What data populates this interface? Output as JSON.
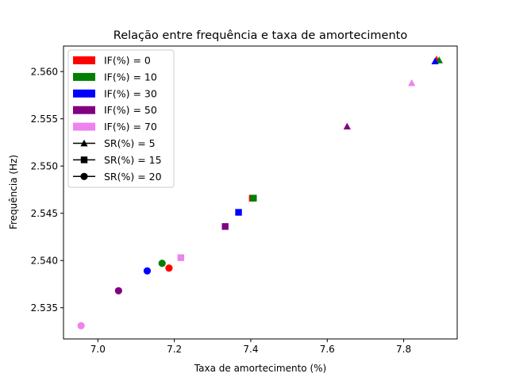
{
  "chart_data": {
    "type": "scatter",
    "title": "Relação entre frequência e taxa de amortecimento",
    "xlabel": "Taxa de amortecimento (%)",
    "ylabel": "Frequência (Hz)",
    "xlim": [
      6.91,
      7.94
    ],
    "ylim": [
      2.5317,
      2.5627
    ],
    "xticks": [
      7.0,
      7.2,
      7.4,
      7.6,
      7.8
    ],
    "xtick_labels": [
      "7.0",
      "7.2",
      "7.4",
      "7.6",
      "7.8"
    ],
    "yticks": [
      2.535,
      2.54,
      2.545,
      2.55,
      2.555,
      2.56
    ],
    "ytick_labels": [
      "2.535",
      "2.540",
      "2.545",
      "2.550",
      "2.555",
      "2.560"
    ],
    "grid": false,
    "legend_position": "upper-left",
    "color_groups": [
      {
        "label": "IF(%) = 0",
        "color": "#ff0000"
      },
      {
        "label": "IF(%) = 10",
        "color": "#008000"
      },
      {
        "label": "IF(%) = 30",
        "color": "#0000ff"
      },
      {
        "label": "IF(%) = 50",
        "color": "#800080"
      },
      {
        "label": "IF(%) = 70",
        "color": "#ee82ee"
      }
    ],
    "marker_groups": [
      {
        "label": "SR(%) = 5",
        "marker": "triangle"
      },
      {
        "label": "SR(%) = 15",
        "marker": "square"
      },
      {
        "label": "SR(%) = 20",
        "marker": "circle"
      }
    ],
    "points": [
      {
        "if_pct": 0,
        "sr_pct": 5,
        "x": 7.886,
        "y": 2.5613,
        "color": "#ff0000",
        "marker": "triangle"
      },
      {
        "if_pct": 10,
        "sr_pct": 5,
        "x": 7.893,
        "y": 2.5612,
        "color": "#008000",
        "marker": "triangle"
      },
      {
        "if_pct": 30,
        "sr_pct": 5,
        "x": 7.882,
        "y": 2.5611,
        "color": "#0000ff",
        "marker": "triangle"
      },
      {
        "if_pct": 50,
        "sr_pct": 5,
        "x": 7.652,
        "y": 2.5542,
        "color": "#800080",
        "marker": "triangle"
      },
      {
        "if_pct": 70,
        "sr_pct": 5,
        "x": 7.821,
        "y": 2.5588,
        "color": "#ee82ee",
        "marker": "triangle"
      },
      {
        "if_pct": 0,
        "sr_pct": 15,
        "x": 7.404,
        "y": 2.5466,
        "color": "#ff0000",
        "marker": "square"
      },
      {
        "if_pct": 10,
        "sr_pct": 15,
        "x": 7.407,
        "y": 2.5466,
        "color": "#008000",
        "marker": "square"
      },
      {
        "if_pct": 30,
        "sr_pct": 15,
        "x": 7.368,
        "y": 2.5451,
        "color": "#0000ff",
        "marker": "square"
      },
      {
        "if_pct": 50,
        "sr_pct": 15,
        "x": 7.333,
        "y": 2.5436,
        "color": "#800080",
        "marker": "square"
      },
      {
        "if_pct": 70,
        "sr_pct": 15,
        "x": 7.217,
        "y": 2.5403,
        "color": "#ee82ee",
        "marker": "square"
      },
      {
        "if_pct": 0,
        "sr_pct": 20,
        "x": 7.186,
        "y": 2.5392,
        "color": "#ff0000",
        "marker": "circle"
      },
      {
        "if_pct": 10,
        "sr_pct": 20,
        "x": 7.168,
        "y": 2.5397,
        "color": "#008000",
        "marker": "circle"
      },
      {
        "if_pct": 30,
        "sr_pct": 20,
        "x": 7.129,
        "y": 2.5389,
        "color": "#0000ff",
        "marker": "circle"
      },
      {
        "if_pct": 50,
        "sr_pct": 20,
        "x": 7.054,
        "y": 2.5368,
        "color": "#800080",
        "marker": "circle"
      },
      {
        "if_pct": 70,
        "sr_pct": 20,
        "x": 6.956,
        "y": 2.5331,
        "color": "#ee82ee",
        "marker": "circle"
      }
    ]
  }
}
